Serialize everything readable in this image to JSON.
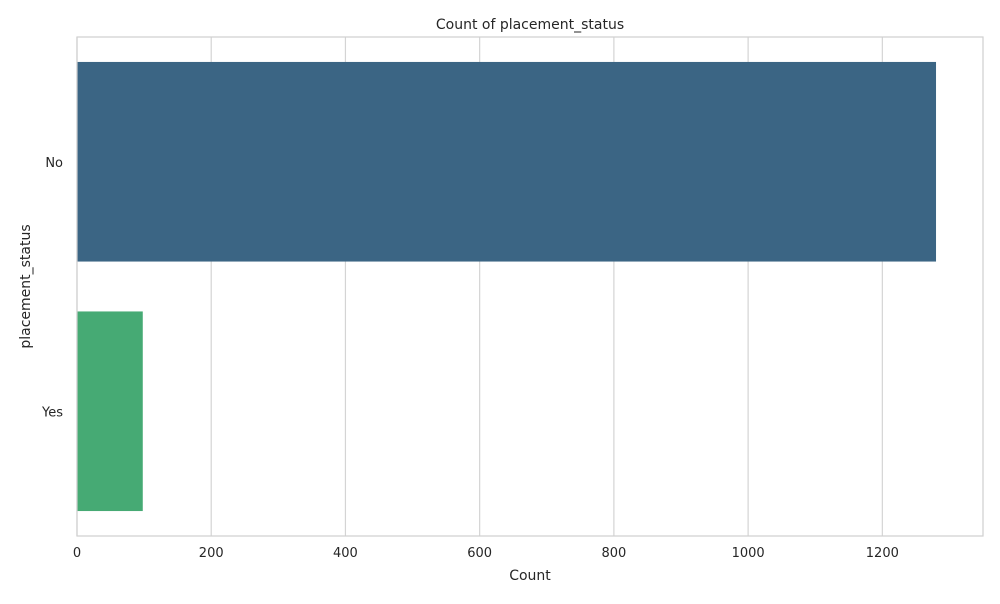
{
  "chart_data": {
    "type": "bar",
    "orientation": "horizontal",
    "title": "Count of placement_status",
    "xlabel": "Count",
    "ylabel": "placement_status",
    "categories": [
      "No",
      "Yes"
    ],
    "values": [
      1280,
      98
    ],
    "xlim": [
      0,
      1350
    ],
    "xticks": [
      0,
      200,
      400,
      600,
      800,
      1000,
      1200
    ],
    "grid": true,
    "legend": "none",
    "colors": {
      "bars": [
        "#3b6584",
        "#46aa74"
      ],
      "grid": "#d4d4d4",
      "axes_edge": "#cfcfcf",
      "text": "#262626",
      "background": "#ffffff"
    }
  }
}
